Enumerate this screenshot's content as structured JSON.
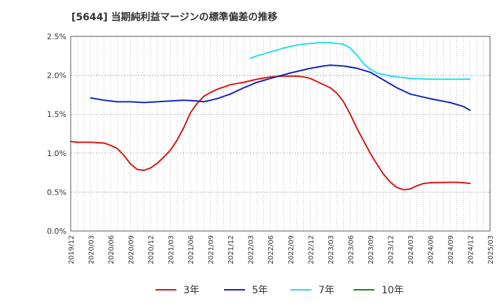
{
  "title": "[5644]  当期純利益マージンの標準偏差の推移",
  "chart_data": {
    "type": "line",
    "y_ticks": [
      "0.0%",
      "0.5%",
      "1.0%",
      "1.5%",
      "2.0%",
      "2.5%"
    ],
    "ylim": [
      0,
      2.5
    ],
    "x_ticks": [
      "2019/12",
      "2020/03",
      "2020/06",
      "2020/09",
      "2020/12",
      "2021/03",
      "2021/06",
      "2021/09",
      "2021/12",
      "2022/03",
      "2022/06",
      "2022/09",
      "2022/12",
      "2023/03",
      "2023/06",
      "2023/09",
      "2023/12",
      "2024/03",
      "2024/06",
      "2024/09",
      "2024/12",
      "2025/03"
    ],
    "grid": true,
    "legend_position": "bottom",
    "series": [
      {
        "name": "3年",
        "color": "#dd1111",
        "points": [
          [
            "2019/12",
            1.15
          ],
          [
            "2020/01",
            1.14
          ],
          [
            "2020/03",
            1.14
          ],
          [
            "2020/05",
            1.13
          ],
          [
            "2020/06",
            1.1
          ],
          [
            "2020/07",
            1.06
          ],
          [
            "2020/08",
            0.97
          ],
          [
            "2020/09",
            0.86
          ],
          [
            "2020/10",
            0.79
          ],
          [
            "2020/11",
            0.78
          ],
          [
            "2020/12",
            0.81
          ],
          [
            "2021/01",
            0.87
          ],
          [
            "2021/02",
            0.95
          ],
          [
            "2021/03",
            1.04
          ],
          [
            "2021/04",
            1.17
          ],
          [
            "2021/05",
            1.33
          ],
          [
            "2021/06",
            1.52
          ],
          [
            "2021/07",
            1.64
          ],
          [
            "2021/08",
            1.73
          ],
          [
            "2021/09",
            1.78
          ],
          [
            "2021/10",
            1.82
          ],
          [
            "2021/11",
            1.85
          ],
          [
            "2021/12",
            1.88
          ],
          [
            "2022/02",
            1.91
          ],
          [
            "2022/04",
            1.95
          ],
          [
            "2022/06",
            1.98
          ],
          [
            "2022/08",
            1.99
          ],
          [
            "2022/10",
            1.99
          ],
          [
            "2022/11",
            1.98
          ],
          [
            "2022/12",
            1.96
          ],
          [
            "2023/01",
            1.92
          ],
          [
            "2023/03",
            1.84
          ],
          [
            "2023/04",
            1.77
          ],
          [
            "2023/05",
            1.66
          ],
          [
            "2023/06",
            1.5
          ],
          [
            "2023/07",
            1.32
          ],
          [
            "2023/08",
            1.16
          ],
          [
            "2023/09",
            1.0
          ],
          [
            "2023/10",
            0.86
          ],
          [
            "2023/11",
            0.73
          ],
          [
            "2023/12",
            0.63
          ],
          [
            "2024/01",
            0.56
          ],
          [
            "2024/02",
            0.53
          ],
          [
            "2024/03",
            0.54
          ],
          [
            "2024/04",
            0.58
          ],
          [
            "2024/05",
            0.61
          ],
          [
            "2024/06",
            0.62
          ],
          [
            "2024/09",
            0.625
          ],
          [
            "2024/10",
            0.625
          ],
          [
            "2024/11",
            0.62
          ],
          [
            "2024/12",
            0.61
          ]
        ]
      },
      {
        "name": "5年",
        "color": "#1122bb",
        "points": [
          [
            "2020/03",
            1.71
          ],
          [
            "2020/05",
            1.68
          ],
          [
            "2020/07",
            1.66
          ],
          [
            "2020/09",
            1.66
          ],
          [
            "2020/11",
            1.65
          ],
          [
            "2021/01",
            1.66
          ],
          [
            "2021/03",
            1.67
          ],
          [
            "2021/05",
            1.68
          ],
          [
            "2021/07",
            1.67
          ],
          [
            "2021/08",
            1.66
          ],
          [
            "2021/09",
            1.68
          ],
          [
            "2021/10",
            1.7
          ],
          [
            "2021/12",
            1.76
          ],
          [
            "2022/02",
            1.84
          ],
          [
            "2022/04",
            1.91
          ],
          [
            "2022/06",
            1.96
          ],
          [
            "2022/09",
            2.03
          ],
          [
            "2022/12",
            2.09
          ],
          [
            "2023/02",
            2.12
          ],
          [
            "2023/03",
            2.13
          ],
          [
            "2023/05",
            2.12
          ],
          [
            "2023/07",
            2.09
          ],
          [
            "2023/09",
            2.04
          ],
          [
            "2023/11",
            1.94
          ],
          [
            "2024/01",
            1.84
          ],
          [
            "2024/03",
            1.76
          ],
          [
            "2024/06",
            1.7
          ],
          [
            "2024/09",
            1.65
          ],
          [
            "2024/11",
            1.6
          ],
          [
            "2024/12",
            1.55
          ]
        ]
      },
      {
        "name": "7年",
        "color": "#22ddee",
        "points": [
          [
            "2022/03",
            2.22
          ],
          [
            "2022/04",
            2.25
          ],
          [
            "2022/06",
            2.3
          ],
          [
            "2022/08",
            2.35
          ],
          [
            "2022/10",
            2.39
          ],
          [
            "2022/12",
            2.41
          ],
          [
            "2023/02",
            2.42
          ],
          [
            "2023/03",
            2.42
          ],
          [
            "2023/05",
            2.4
          ],
          [
            "2023/06",
            2.35
          ],
          [
            "2023/07",
            2.26
          ],
          [
            "2023/08",
            2.15
          ],
          [
            "2023/09",
            2.08
          ],
          [
            "2023/10",
            2.03
          ],
          [
            "2023/12",
            1.99
          ],
          [
            "2024/03",
            1.96
          ],
          [
            "2024/06",
            1.95
          ],
          [
            "2024/09",
            1.95
          ],
          [
            "2024/12",
            1.95
          ]
        ]
      },
      {
        "name": "10年",
        "color": "#118811",
        "points": []
      }
    ]
  }
}
